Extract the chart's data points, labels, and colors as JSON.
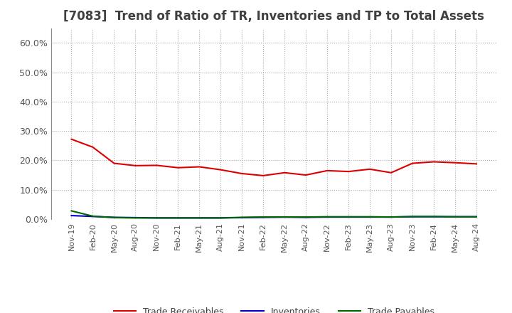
{
  "title": "[7083]  Trend of Ratio of TR, Inventories and TP to Total Assets",
  "title_color": "#404040",
  "title_fontsize": 12,
  "background_color": "#ffffff",
  "plot_bg_color": "#ffffff",
  "grid_color": "#aaaaaa",
  "ylim": [
    0.0,
    0.65
  ],
  "yticks": [
    0.0,
    0.1,
    0.2,
    0.3,
    0.4,
    0.5,
    0.6
  ],
  "ytick_labels": [
    "0.0%",
    "10.0%",
    "20.0%",
    "30.0%",
    "40.0%",
    "50.0%",
    "60.0%"
  ],
  "x_labels": [
    "Nov-19",
    "Feb-20",
    "May-20",
    "Aug-20",
    "Nov-20",
    "Feb-21",
    "May-21",
    "Aug-21",
    "Nov-21",
    "Feb-22",
    "May-22",
    "Aug-22",
    "Nov-22",
    "Feb-23",
    "May-23",
    "Aug-23",
    "Nov-23",
    "Feb-24",
    "May-24",
    "Aug-24"
  ],
  "trade_receivables": [
    0.272,
    0.245,
    0.19,
    0.182,
    0.183,
    0.175,
    0.178,
    0.168,
    0.155,
    0.148,
    0.158,
    0.15,
    0.165,
    0.162,
    0.17,
    0.158,
    0.19,
    0.195,
    0.192,
    0.188
  ],
  "inventories": [
    0.012,
    0.009,
    0.006,
    0.005,
    0.004,
    0.004,
    0.004,
    0.004,
    0.005,
    0.006,
    0.007,
    0.006,
    0.007,
    0.007,
    0.007,
    0.007,
    0.008,
    0.008,
    0.008,
    0.008
  ],
  "trade_payables": [
    0.028,
    0.01,
    0.005,
    0.004,
    0.004,
    0.004,
    0.004,
    0.004,
    0.006,
    0.007,
    0.007,
    0.007,
    0.008,
    0.008,
    0.008,
    0.007,
    0.009,
    0.009,
    0.008,
    0.008
  ],
  "line_colors": [
    "#dd0000",
    "#0000cc",
    "#006600"
  ],
  "legend_labels": [
    "Trade Receivables",
    "Inventories",
    "Trade Payables"
  ],
  "legend_ncol": 3
}
